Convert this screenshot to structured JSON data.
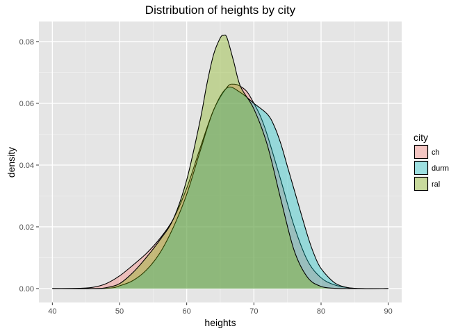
{
  "chart_data": {
    "type": "area",
    "title": "Distribution of heights by city",
    "xlabel": "heights",
    "ylabel": "density",
    "xlim": [
      38,
      92
    ],
    "ylim": [
      -0.0045,
      0.0865
    ],
    "x_ticks": [
      40,
      50,
      60,
      70,
      80,
      90
    ],
    "y_ticks": [
      0.0,
      0.02,
      0.04,
      0.06,
      0.08
    ],
    "x_tick_labels": [
      "40",
      "50",
      "60",
      "70",
      "80",
      "90"
    ],
    "y_tick_labels": [
      "0.00",
      "0.02",
      "0.04",
      "0.06",
      "0.08"
    ],
    "grid": true,
    "legend": {
      "title": "city",
      "position": "right"
    },
    "series": [
      {
        "name": "ch",
        "color": "#F8766D",
        "x": [
          40,
          44,
          46,
          48,
          50,
          52,
          54,
          56,
          58,
          60,
          62,
          64,
          66,
          67,
          68,
          69,
          70,
          71,
          72,
          74,
          76,
          78,
          80,
          82,
          84,
          86,
          90
        ],
        "values": [
          0.0,
          0.0001,
          0.0004,
          0.0016,
          0.0041,
          0.0076,
          0.0114,
          0.0162,
          0.0225,
          0.0325,
          0.0455,
          0.0578,
          0.0652,
          0.0662,
          0.0655,
          0.0637,
          0.06,
          0.0557,
          0.0497,
          0.0352,
          0.0202,
          0.009,
          0.0035,
          0.0012,
          0.0003,
          0.0,
          0.0
        ]
      },
      {
        "name": "durm",
        "color": "#00BFC4",
        "x": [
          40,
          48,
          50,
          52,
          54,
          56,
          58,
          60,
          62,
          64,
          66,
          68,
          70,
          72,
          73,
          74,
          75,
          76,
          78,
          79,
          80,
          82,
          84,
          86,
          90
        ],
        "values": [
          0.0,
          0.0001,
          0.0009,
          0.0026,
          0.006,
          0.0115,
          0.0198,
          0.0305,
          0.0445,
          0.0578,
          0.065,
          0.0635,
          0.06,
          0.0565,
          0.0528,
          0.047,
          0.0395,
          0.032,
          0.0171,
          0.0109,
          0.0065,
          0.0019,
          0.0003,
          0.0,
          0.0
        ]
      },
      {
        "name": "ral",
        "color": "#7CAE00",
        "x": [
          40,
          46,
          48,
          50,
          52,
          54,
          56,
          58,
          60,
          62,
          63,
          64,
          65,
          65.5,
          66,
          67,
          68,
          70,
          72,
          74,
          76,
          78,
          80,
          82,
          84,
          90
        ],
        "values": [
          0.0,
          0.0,
          0.0003,
          0.0016,
          0.0052,
          0.0101,
          0.0157,
          0.0225,
          0.0352,
          0.0545,
          0.0662,
          0.0758,
          0.0812,
          0.082,
          0.0812,
          0.0735,
          0.0655,
          0.0582,
          0.0465,
          0.029,
          0.0123,
          0.0036,
          0.0007,
          0.0001,
          0.0,
          0.0
        ]
      }
    ]
  }
}
